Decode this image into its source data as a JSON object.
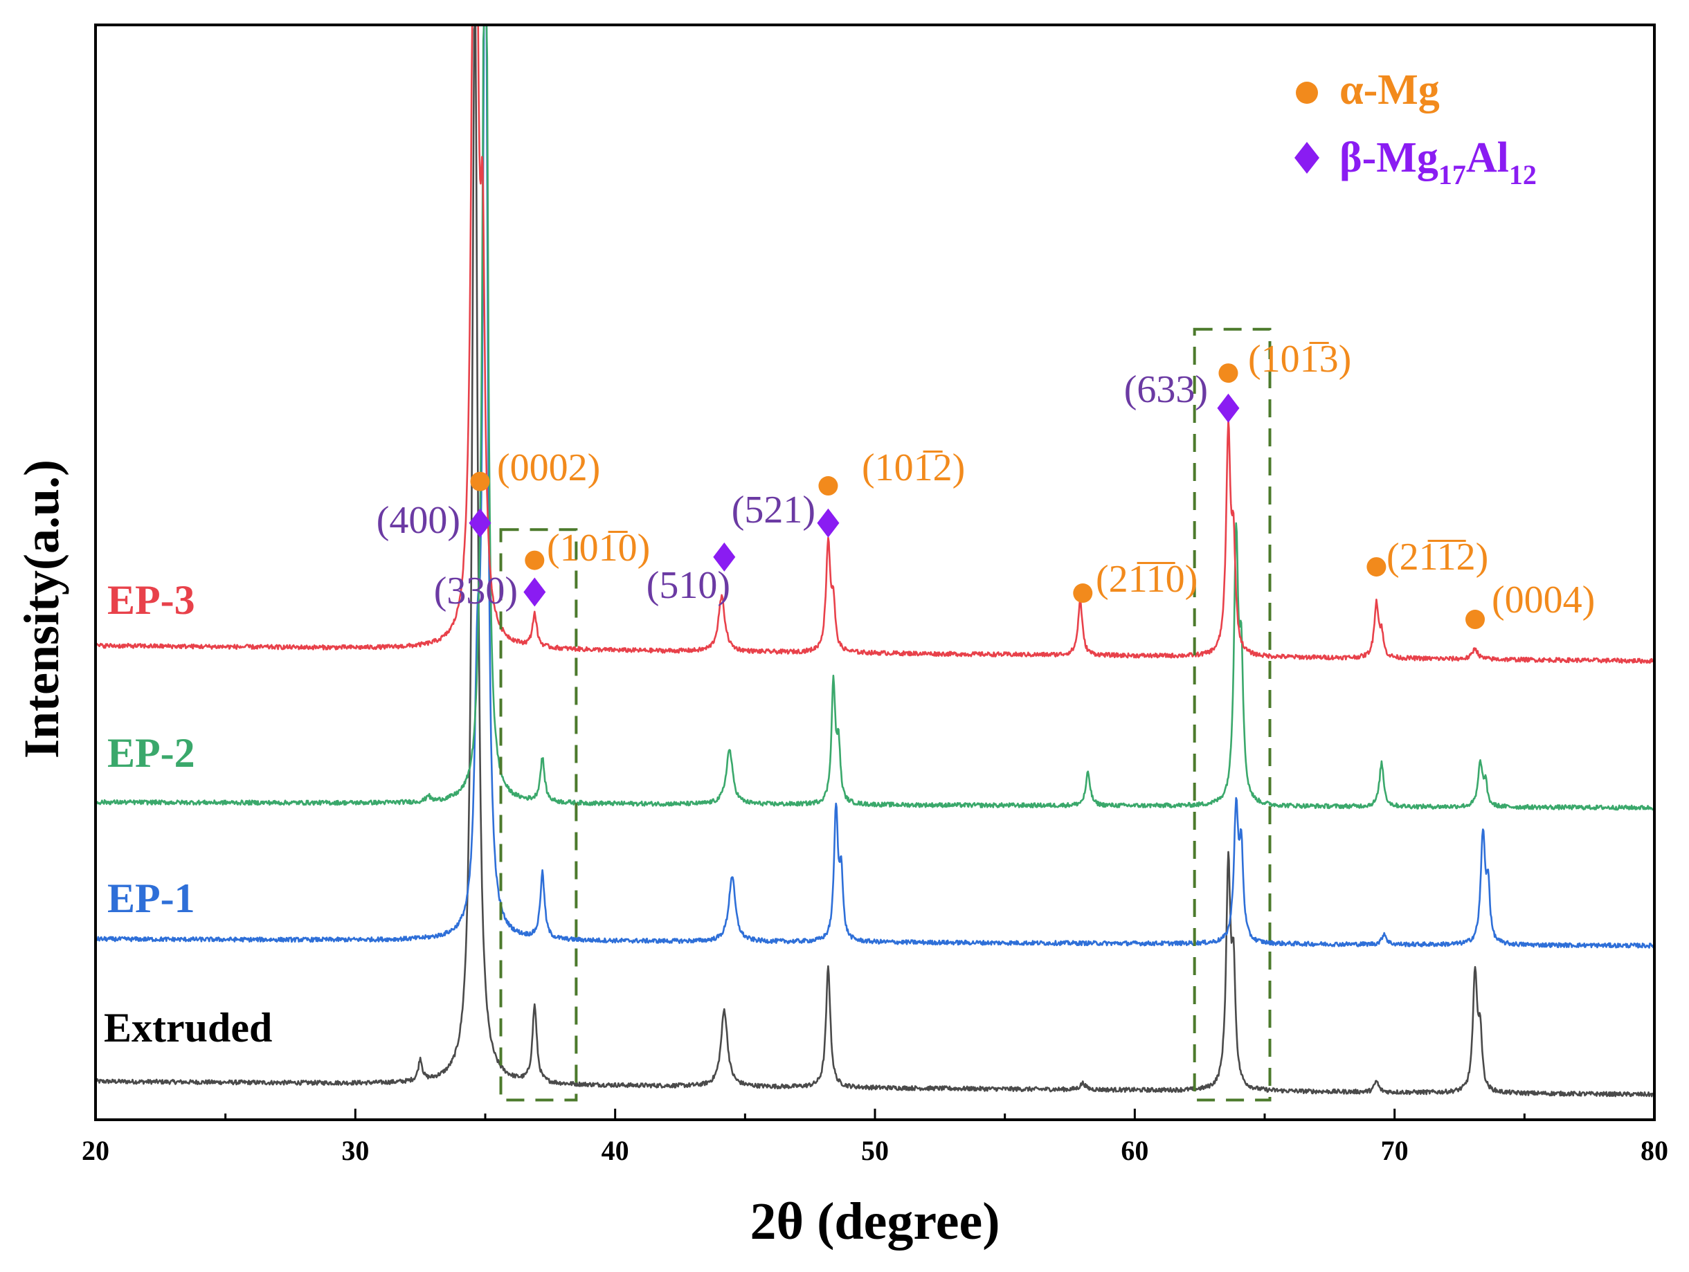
{
  "chart_data": {
    "type": "line",
    "title": "",
    "xlabel": "2θ (degree)",
    "ylabel": "Intensity(a.u.)",
    "xlim": [
      20,
      80
    ],
    "xticks": [
      20,
      30,
      40,
      50,
      60,
      70,
      80
    ],
    "colors": {
      "alpha": "#f28a1c",
      "beta": "#8a1cf2",
      "label_beta": "#6b3aa3",
      "box": "#4c7a2c"
    },
    "series": [
      {
        "name": "Extruded",
        "color": "#4a4a4a",
        "baseline": 0.035,
        "slope": -0.012,
        "peaks": [
          [
            32.5,
            0.02,
            0.09
          ],
          [
            34.6,
            1.0,
            0.13
          ],
          [
            36.9,
            0.07,
            0.1
          ],
          [
            44.2,
            0.07,
            0.15
          ],
          [
            48.2,
            0.11,
            0.1
          ],
          [
            58.0,
            0.006,
            0.12
          ],
          [
            63.6,
            0.2,
            0.1
          ],
          [
            63.8,
            0.1,
            0.09
          ],
          [
            69.3,
            0.01,
            0.1
          ],
          [
            73.1,
            0.11,
            0.1
          ],
          [
            73.3,
            0.05,
            0.08
          ]
        ]
      },
      {
        "name": "EP-1",
        "color": "#2e6fd8",
        "baseline": 0.165,
        "slope": -0.006,
        "peaks": [
          [
            34.7,
            0.2,
            0.13
          ],
          [
            35.0,
            1.05,
            0.1
          ],
          [
            37.2,
            0.06,
            0.1
          ],
          [
            44.5,
            0.06,
            0.15
          ],
          [
            48.5,
            0.12,
            0.09
          ],
          [
            48.7,
            0.06,
            0.08
          ],
          [
            63.9,
            0.12,
            0.1
          ],
          [
            64.1,
            0.08,
            0.09
          ],
          [
            69.6,
            0.01,
            0.1
          ],
          [
            73.4,
            0.1,
            0.1
          ],
          [
            73.6,
            0.05,
            0.08
          ]
        ]
      },
      {
        "name": "EP-2",
        "color": "#3aa86b",
        "baseline": 0.29,
        "slope": -0.005,
        "peaks": [
          [
            32.8,
            0.006,
            0.08
          ],
          [
            34.8,
            0.05,
            0.12
          ],
          [
            35.0,
            1.05,
            0.1
          ],
          [
            37.2,
            0.04,
            0.1
          ],
          [
            44.4,
            0.05,
            0.15
          ],
          [
            48.4,
            0.11,
            0.09
          ],
          [
            48.6,
            0.05,
            0.08
          ],
          [
            58.2,
            0.03,
            0.1
          ],
          [
            63.9,
            0.24,
            0.1
          ],
          [
            64.1,
            0.12,
            0.09
          ],
          [
            69.5,
            0.04,
            0.1
          ],
          [
            73.3,
            0.04,
            0.1
          ],
          [
            73.5,
            0.02,
            0.08
          ]
        ]
      },
      {
        "name": "EP-3",
        "color": "#e8414a",
        "baseline": 0.433,
        "slope": -0.014,
        "peaks": [
          [
            34.6,
            1.05,
            0.12
          ],
          [
            34.9,
            0.3,
            0.1
          ],
          [
            36.9,
            0.03,
            0.1
          ],
          [
            44.1,
            0.05,
            0.15
          ],
          [
            48.2,
            0.1,
            0.1
          ],
          [
            48.4,
            0.04,
            0.08
          ],
          [
            57.9,
            0.05,
            0.1
          ],
          [
            63.6,
            0.2,
            0.1
          ],
          [
            63.8,
            0.09,
            0.09
          ],
          [
            69.3,
            0.05,
            0.1
          ],
          [
            69.5,
            0.02,
            0.08
          ],
          [
            73.1,
            0.01,
            0.12
          ]
        ]
      }
    ],
    "annotations": [
      {
        "id": "0002",
        "label": "(0002)",
        "phase": "alpha",
        "x": 34.8,
        "y": 0.583
      },
      {
        "id": "400",
        "label": "(400)",
        "phase": "beta",
        "x": 34.8,
        "y": 0.545
      },
      {
        "id": "10-10",
        "label": "(101̅0)",
        "phase": "alpha",
        "x": 36.9,
        "y": 0.511
      },
      {
        "id": "330",
        "label": "(330)",
        "phase": "beta",
        "x": 36.9,
        "y": 0.482
      },
      {
        "id": "510",
        "label": "(510)",
        "phase": "beta",
        "x": 44.2,
        "y": 0.514
      },
      {
        "id": "10-12",
        "label": "(101̅2)",
        "phase": "alpha",
        "x": 48.2,
        "y": 0.579
      },
      {
        "id": "521",
        "label": "(521)",
        "phase": "beta",
        "x": 48.2,
        "y": 0.545
      },
      {
        "id": "2-1-10",
        "label": "(21̅1̅0)",
        "phase": "alpha",
        "x": 58.0,
        "y": 0.481
      },
      {
        "id": "10-13",
        "label": "(101̅3)",
        "phase": "alpha",
        "x": 63.6,
        "y": 0.682
      },
      {
        "id": "633",
        "label": "(633)",
        "phase": "beta",
        "x": 63.6,
        "y": 0.65
      },
      {
        "id": "2-1-12",
        "label": "(21̅1̅2)",
        "phase": "alpha",
        "x": 69.3,
        "y": 0.505
      },
      {
        "id": "0004",
        "label": "(0004)",
        "phase": "alpha",
        "x": 73.1,
        "y": 0.457
      }
    ],
    "boxes": [
      {
        "x0": 35.6,
        "x1": 38.5,
        "y0": 0.018,
        "y1": 0.539
      },
      {
        "x0": 62.3,
        "x1": 65.2,
        "y0": 0.018,
        "y1": 0.722
      }
    ],
    "legend": {
      "position": "top-right",
      "items": [
        {
          "marker": "circle",
          "phase": "alpha",
          "text": "α-Mg",
          "sub": ""
        },
        {
          "marker": "diamond",
          "phase": "beta",
          "text": "β-Mg",
          "sub": "17",
          "text2": "Al",
          "sub2": "12"
        }
      ]
    }
  }
}
